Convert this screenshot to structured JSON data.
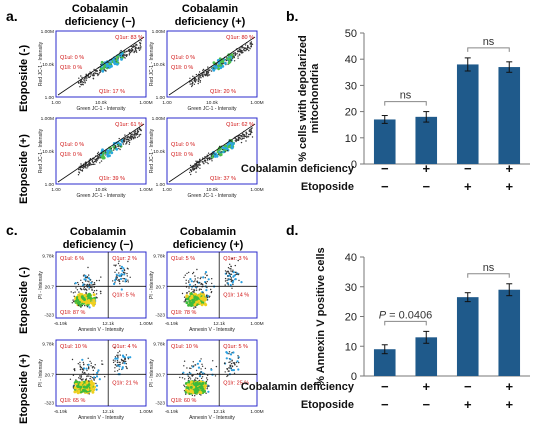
{
  "panels": {
    "a": {
      "label": "a.",
      "col_headers": [
        "Cobalamin\ndeficiency (−)",
        "Cobalamin\ndeficiency (+)"
      ],
      "row_headers": [
        "Etoposide (-)",
        "Etoposide (+)"
      ],
      "y_axis_title": "Red JC-1 - Intensity",
      "x_axis_title": "Green JC-1 - Intensity",
      "x_ticks": [
        "1.00",
        "10.0k",
        "1.00M"
      ],
      "y_ticks": [
        "1.00M",
        "10.0k",
        "1.00"
      ],
      "plots": [
        {
          "q1ur": "Q1ur: 83 %",
          "q1ul": "Q1ul: 0 %",
          "q1ll": "Q1ll: 0 %",
          "q1lr": "Q1lr: 17 %"
        },
        {
          "q1ur": "Q1ur: 80 %",
          "q1ul": "Q1ul: 0 %",
          "q1ll": "Q1ll: 0 %",
          "q1lr": "Q1lr: 20 %"
        },
        {
          "q1ur": "Q1ur: 61 %",
          "q1ul": "Q1ul: 0 %",
          "q1ll": "Q1ll: 0 %",
          "q1lr": "Q1lr: 39 %"
        },
        {
          "q1ur": "Q1ur: 62 %",
          "q1ul": "Q1ul: 0 %",
          "q1ll": "Q1ll: 0 %",
          "q1lr": "Q1lr: 37 %"
        }
      ]
    },
    "c": {
      "label": "c.",
      "col_headers": [
        "Cobalamin\ndeficiency (−)",
        "Cobalamin\ndeficiency (+)"
      ],
      "row_headers": [
        "Etoposide (-)",
        "Etoposide (+)"
      ],
      "y_axis_title": "PI - Intensity",
      "x_axis_title": "Annexin V - Intensity",
      "x_ticks": [
        "-6.19k",
        "12.1k",
        "1.00M"
      ],
      "y_ticks": [
        "9.78k",
        "20.7",
        "-323"
      ],
      "plots": [
        {
          "q1ul": "Q1ul: 6 %",
          "q1ur": "Q1ur: 2 %",
          "q1lr": "Q1lr: 5 %",
          "q1ll": "Q1ll: 87 %"
        },
        {
          "q1ul": "Q1ul: 5 %",
          "q1ur": "Q1ur: 3 %",
          "q1lr": "Q1lr: 14 %",
          "q1ll": "Q1ll: 78 %"
        },
        {
          "q1ul": "Q1ul: 10 %",
          "q1ur": "Q1ur: 4 %",
          "q1lr": "Q1lr: 21 %",
          "q1ll": "Q1ll: 65 %"
        },
        {
          "q1ul": "Q1ul: 10 %",
          "q1ur": "Q1ur: 5 %",
          "q1lr": "Q1lr: 25 %",
          "q1ll": "Q1ll: 60 %"
        }
      ]
    },
    "b": {
      "label": "b."
    },
    "d": {
      "label": "d."
    }
  },
  "chart_data": [
    {
      "panel": "b",
      "type": "bar",
      "ylabel": "% cells with depolarized mitochondria",
      "ylim": [
        0,
        50
      ],
      "yticks": [
        0,
        10,
        20,
        30,
        40,
        50
      ],
      "values": [
        17,
        18,
        38,
        37
      ],
      "errors": [
        1.5,
        2,
        2.5,
        2
      ],
      "factor_rows": [
        {
          "label": "Cobalamin deficiency",
          "signs": [
            "−",
            "+",
            "−",
            "+"
          ]
        },
        {
          "label": "Etoposide",
          "signs": [
            "−",
            "−",
            "+",
            "+"
          ]
        }
      ],
      "annotations": [
        {
          "between": [
            0,
            1
          ],
          "text": "ns"
        },
        {
          "between": [
            2,
            3
          ],
          "text": "ns"
        }
      ],
      "color": "#1f5a8b"
    },
    {
      "panel": "d",
      "type": "bar",
      "ylabel": "% Annexin V positive cells",
      "ylim": [
        0,
        40
      ],
      "yticks": [
        0,
        10,
        20,
        30,
        40
      ],
      "values": [
        9,
        13,
        26.5,
        29
      ],
      "errors": [
        1.5,
        2,
        1.5,
        2
      ],
      "factor_rows": [
        {
          "label": "Cobalamin deficiency",
          "signs": [
            "−",
            "+",
            "−",
            "+"
          ]
        },
        {
          "label": "Etoposide",
          "signs": [
            "−",
            "−",
            "+",
            "+"
          ]
        }
      ],
      "annotations": [
        {
          "between": [
            0,
            1
          ],
          "text": "P = 0.0406",
          "italic_prefix": "P"
        },
        {
          "between": [
            2,
            3
          ],
          "text": "ns"
        }
      ],
      "color": "#1f5a8b"
    }
  ]
}
